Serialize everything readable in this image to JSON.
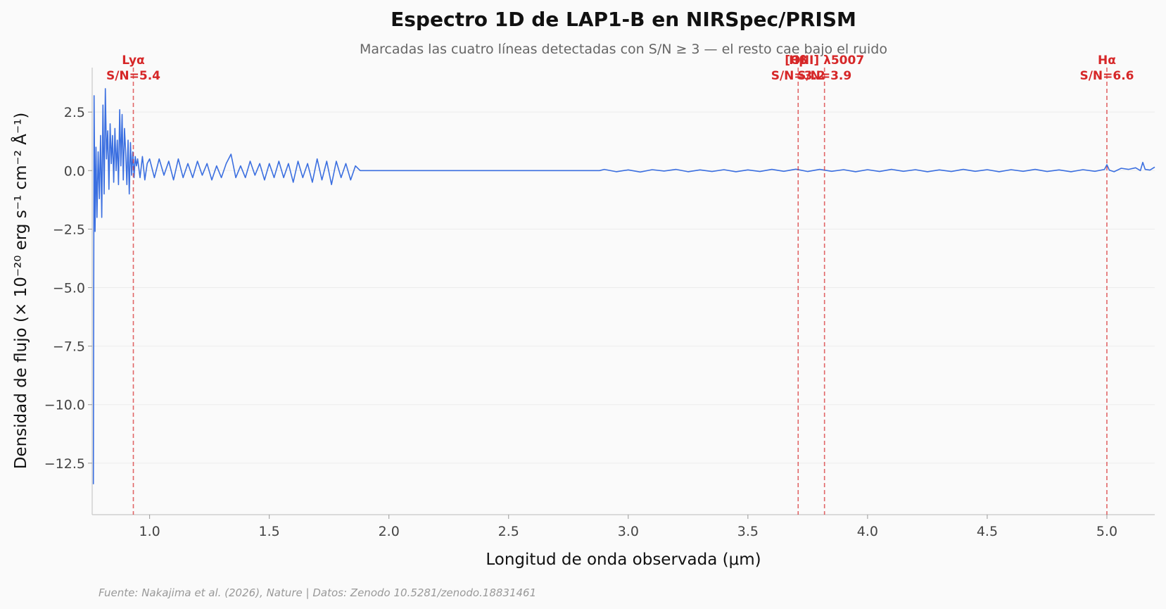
{
  "chart_data": {
    "type": "line",
    "title": "Espectro 1D de LAP1-B en NIRSpec/PRISM",
    "subtitle": "Marcadas las cuatro líneas detectadas con S/N ≥ 3 — el resto cae bajo el ruido",
    "xlabel": "Longitud de onda observada (μm)",
    "ylabel": "Densidad de flujo (× 10⁻²⁰ erg s⁻¹ cm⁻² Å⁻¹)",
    "source": "Fuente: Nakajima et al. (2026), Nature | Datos: Zenodo 10.5281/zenodo.18831461",
    "xlim": [
      0.76,
      5.2
    ],
    "ylim": [
      -14.7,
      4.4
    ],
    "x_ticks": [
      1.0,
      1.5,
      2.0,
      2.5,
      3.0,
      3.5,
      4.0,
      4.5,
      5.0
    ],
    "x_tick_labels": [
      "1.0",
      "1.5",
      "2.0",
      "2.5",
      "3.0",
      "3.5",
      "4.0",
      "4.5",
      "5.0"
    ],
    "y_ticks": [
      2.5,
      0.0,
      -2.5,
      -5.0,
      -7.5,
      -10.0,
      -12.5
    ],
    "y_tick_labels": [
      "2.5",
      "0.0",
      "−2.5",
      "−5.0",
      "−7.5",
      "−10.0",
      "−12.5"
    ],
    "grid": "horizontal",
    "series_color": "#3b6fe0",
    "line_color": "#d62728",
    "series": [
      {
        "x": [
          0.765,
          0.768,
          0.772,
          0.776,
          0.78,
          0.785,
          0.79,
          0.795,
          0.8,
          0.805,
          0.81,
          0.815,
          0.82,
          0.825,
          0.83,
          0.835,
          0.84,
          0.845,
          0.85,
          0.855,
          0.86,
          0.865,
          0.87,
          0.875,
          0.88,
          0.885,
          0.89,
          0.895,
          0.9,
          0.905,
          0.91,
          0.915,
          0.92,
          0.925,
          0.93,
          0.935,
          0.94,
          0.945,
          0.95,
          0.96,
          0.97,
          0.98,
          0.99,
          1.0,
          1.02,
          1.04,
          1.06,
          1.08,
          1.1,
          1.12,
          1.14,
          1.16,
          1.18,
          1.2,
          1.22,
          1.24,
          1.26,
          1.28,
          1.3,
          1.32,
          1.34,
          1.36,
          1.38,
          1.4,
          1.42,
          1.44,
          1.46,
          1.48,
          1.5,
          1.52,
          1.54,
          1.56,
          1.58,
          1.6,
          1.62,
          1.64,
          1.66,
          1.68,
          1.7,
          1.72,
          1.74,
          1.76,
          1.78,
          1.8,
          1.82,
          1.84,
          1.86,
          1.88,
          2.0,
          2.5,
          2.88,
          2.9,
          2.95,
          3.0,
          3.05,
          3.1,
          3.15,
          3.2,
          3.25,
          3.3,
          3.35,
          3.4,
          3.45,
          3.5,
          3.55,
          3.6,
          3.65,
          3.7,
          3.75,
          3.8,
          3.85,
          3.9,
          3.95,
          4.0,
          4.05,
          4.1,
          4.15,
          4.2,
          4.25,
          4.3,
          4.35,
          4.4,
          4.45,
          4.5,
          4.55,
          4.6,
          4.65,
          4.7,
          4.75,
          4.8,
          4.85,
          4.9,
          4.95,
          4.99,
          5.0,
          5.01,
          5.03,
          5.06,
          5.09,
          5.12,
          5.14,
          5.15,
          5.16,
          5.18,
          5.2
        ],
        "y": [
          -13.4,
          3.2,
          -2.6,
          1.0,
          -2.0,
          0.8,
          -1.2,
          1.5,
          -2.0,
          2.8,
          -1.0,
          3.5,
          0.5,
          1.7,
          -0.8,
          2.0,
          0.3,
          1.5,
          -0.5,
          1.8,
          0.0,
          1.3,
          -0.6,
          2.6,
          0.2,
          2.4,
          -0.4,
          1.8,
          0.8,
          -0.6,
          1.3,
          -1.0,
          1.2,
          -0.2,
          0.8,
          -0.3,
          0.6,
          0.2,
          0.5,
          -0.3,
          0.6,
          -0.4,
          0.3,
          0.5,
          -0.3,
          0.5,
          -0.2,
          0.4,
          -0.4,
          0.5,
          -0.3,
          0.3,
          -0.3,
          0.4,
          -0.2,
          0.3,
          -0.4,
          0.2,
          -0.3,
          0.3,
          0.7,
          -0.3,
          0.2,
          -0.3,
          0.4,
          -0.2,
          0.3,
          -0.4,
          0.3,
          -0.3,
          0.4,
          -0.3,
          0.3,
          -0.5,
          0.4,
          -0.3,
          0.3,
          -0.5,
          0.5,
          -0.4,
          0.4,
          -0.6,
          0.4,
          -0.3,
          0.3,
          -0.4,
          0.2,
          0.0,
          0.0,
          0.0,
          0.0,
          0.05,
          -0.05,
          0.03,
          -0.06,
          0.04,
          -0.02,
          0.05,
          -0.05,
          0.03,
          -0.04,
          0.04,
          -0.05,
          0.03,
          -0.04,
          0.05,
          -0.03,
          0.06,
          -0.04,
          0.05,
          -0.03,
          0.04,
          -0.05,
          0.04,
          -0.04,
          0.05,
          -0.03,
          0.04,
          -0.05,
          0.03,
          -0.04,
          0.05,
          -0.03,
          0.04,
          -0.05,
          0.04,
          -0.03,
          0.05,
          -0.04,
          0.03,
          -0.05,
          0.04,
          -0.03,
          0.05,
          0.25,
          0.02,
          -0.05,
          0.1,
          0.05,
          0.12,
          0.0,
          0.35,
          0.05,
          0.02,
          0.15
        ]
      }
    ],
    "lines": [
      {
        "x": 0.932,
        "label": "Lyα",
        "sn": "S/N=5.4"
      },
      {
        "x": 3.71,
        "label": "Hβ",
        "sn": "S/N=3.2"
      },
      {
        "x": 3.82,
        "label": "[OIII] λ5007",
        "sn": "S/N=3.9"
      },
      {
        "x": 5.0,
        "label": "Hα",
        "sn": "S/N=6.6"
      }
    ]
  }
}
